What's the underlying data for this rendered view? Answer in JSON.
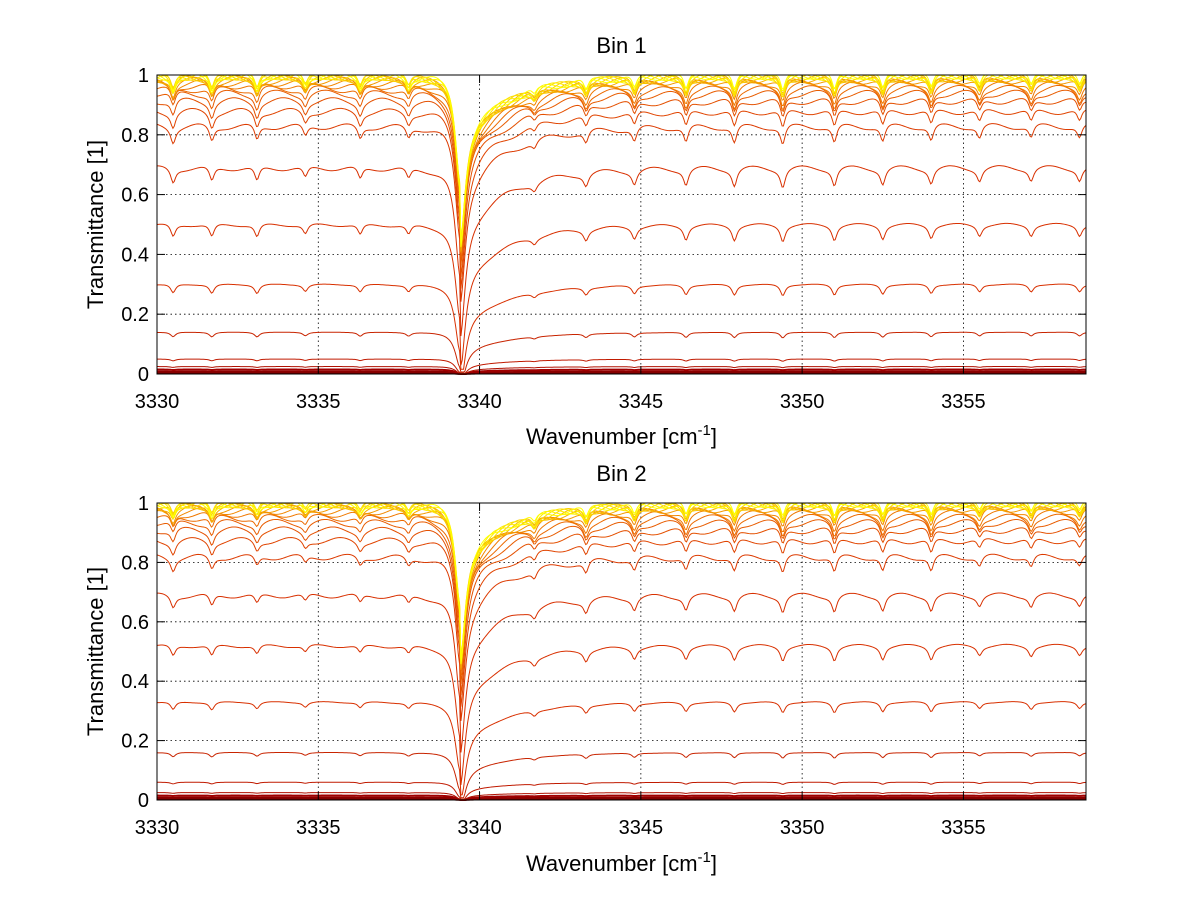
{
  "chart_data": [
    {
      "type": "line",
      "title": "Bin 1",
      "xlabel": "Wavenumber [cm",
      "xlabel_sup": "-1",
      "xlabel_end": "]",
      "ylabel": "Transmittance [1]",
      "xlim": [
        3330,
        3358.8
      ],
      "ylim": [
        0,
        1
      ],
      "xticks": [
        3330,
        3335,
        3340,
        3345,
        3350,
        3355
      ],
      "yticks": [
        0,
        0.2,
        0.4,
        0.6,
        0.8,
        1
      ],
      "grid": true,
      "lines": {
        "count": 24,
        "baselines": [
          0.003,
          0.008,
          0.015,
          0.025,
          0.05,
          0.14,
          0.3,
          0.5,
          0.69,
          0.83,
          0.88,
          0.915,
          0.94,
          0.955,
          0.967,
          0.976,
          0.983,
          0.988,
          0.992,
          0.995,
          0.997,
          0.998,
          0.999,
          1.0
        ],
        "colors": [
          "#7a0000",
          "#8b0000",
          "#a00000",
          "#b01000",
          "#c01a00",
          "#c82400",
          "#d83000",
          "#d83000",
          "#d83000",
          "#dc3a00",
          "#e04400",
          "#e45000",
          "#e85c00",
          "#ec6a00",
          "#ef7800",
          "#f28800",
          "#f49a00",
          "#f6ac00",
          "#f8be00",
          "#fad000",
          "#fce000",
          "#fdec00",
          "#fef600",
          "#ffff00"
        ],
        "absorption_lines": [
          {
            "center": 3330.5,
            "strength": 0.12
          },
          {
            "center": 3331.7,
            "strength": 0.12
          },
          {
            "center": 3333.1,
            "strength": 0.12
          },
          {
            "center": 3334.6,
            "strength": 0.09
          },
          {
            "center": 3336.3,
            "strength": 0.1
          },
          {
            "center": 3337.8,
            "strength": 0.09
          },
          {
            "center": 3339.4,
            "strength": 0.92
          },
          {
            "center": 3341.7,
            "strength": 0.06
          },
          {
            "center": 3343.3,
            "strength": 0.1
          },
          {
            "center": 3344.8,
            "strength": 0.11
          },
          {
            "center": 3346.4,
            "strength": 0.13
          },
          {
            "center": 3347.9,
            "strength": 0.14
          },
          {
            "center": 3349.4,
            "strength": 0.15
          },
          {
            "center": 3351.0,
            "strength": 0.14
          },
          {
            "center": 3352.5,
            "strength": 0.13
          },
          {
            "center": 3354.0,
            "strength": 0.12
          },
          {
            "center": 3355.5,
            "strength": 0.1
          },
          {
            "center": 3357.1,
            "strength": 0.1
          },
          {
            "center": 3358.6,
            "strength": 0.1
          }
        ]
      }
    },
    {
      "type": "line",
      "title": "Bin 2",
      "xlabel": "Wavenumber [cm",
      "xlabel_sup": "-1",
      "xlabel_end": "]",
      "ylabel": "Transmittance [1]",
      "xlim": [
        3330,
        3358.8
      ],
      "ylim": [
        0,
        1
      ],
      "xticks": [
        3330,
        3335,
        3340,
        3345,
        3350,
        3355
      ],
      "yticks": [
        0,
        0.2,
        0.4,
        0.6,
        0.8,
        1
      ],
      "grid": true,
      "lines": {
        "count": 24,
        "baselines": [
          0.003,
          0.008,
          0.015,
          0.025,
          0.06,
          0.16,
          0.33,
          0.52,
          0.69,
          0.82,
          0.875,
          0.91,
          0.935,
          0.952,
          0.965,
          0.975,
          0.982,
          0.988,
          0.992,
          0.995,
          0.997,
          0.998,
          0.999,
          1.0
        ],
        "colors": [
          "#7a0000",
          "#8b0000",
          "#a00000",
          "#b01000",
          "#c01a00",
          "#c82400",
          "#d83000",
          "#d83000",
          "#d83000",
          "#dc3a00",
          "#e04400",
          "#e45000",
          "#e85c00",
          "#ec6a00",
          "#ef7800",
          "#f28800",
          "#f49a00",
          "#f6ac00",
          "#f8be00",
          "#fad000",
          "#fce000",
          "#fdec00",
          "#fef600",
          "#ffff00"
        ],
        "absorption_lines": [
          {
            "center": 3330.5,
            "strength": 0.1
          },
          {
            "center": 3331.7,
            "strength": 0.1
          },
          {
            "center": 3333.1,
            "strength": 0.08
          },
          {
            "center": 3334.6,
            "strength": 0.06
          },
          {
            "center": 3336.3,
            "strength": 0.07
          },
          {
            "center": 3337.8,
            "strength": 0.07
          },
          {
            "center": 3339.4,
            "strength": 0.88
          },
          {
            "center": 3341.7,
            "strength": 0.07
          },
          {
            "center": 3343.3,
            "strength": 0.1
          },
          {
            "center": 3344.8,
            "strength": 0.1
          },
          {
            "center": 3346.4,
            "strength": 0.11
          },
          {
            "center": 3347.9,
            "strength": 0.12
          },
          {
            "center": 3349.4,
            "strength": 0.13
          },
          {
            "center": 3351.0,
            "strength": 0.13
          },
          {
            "center": 3352.5,
            "strength": 0.12
          },
          {
            "center": 3354.0,
            "strength": 0.12
          },
          {
            "center": 3355.5,
            "strength": 0.08
          },
          {
            "center": 3357.1,
            "strength": 0.09
          },
          {
            "center": 3358.6,
            "strength": 0.08
          }
        ]
      }
    }
  ]
}
